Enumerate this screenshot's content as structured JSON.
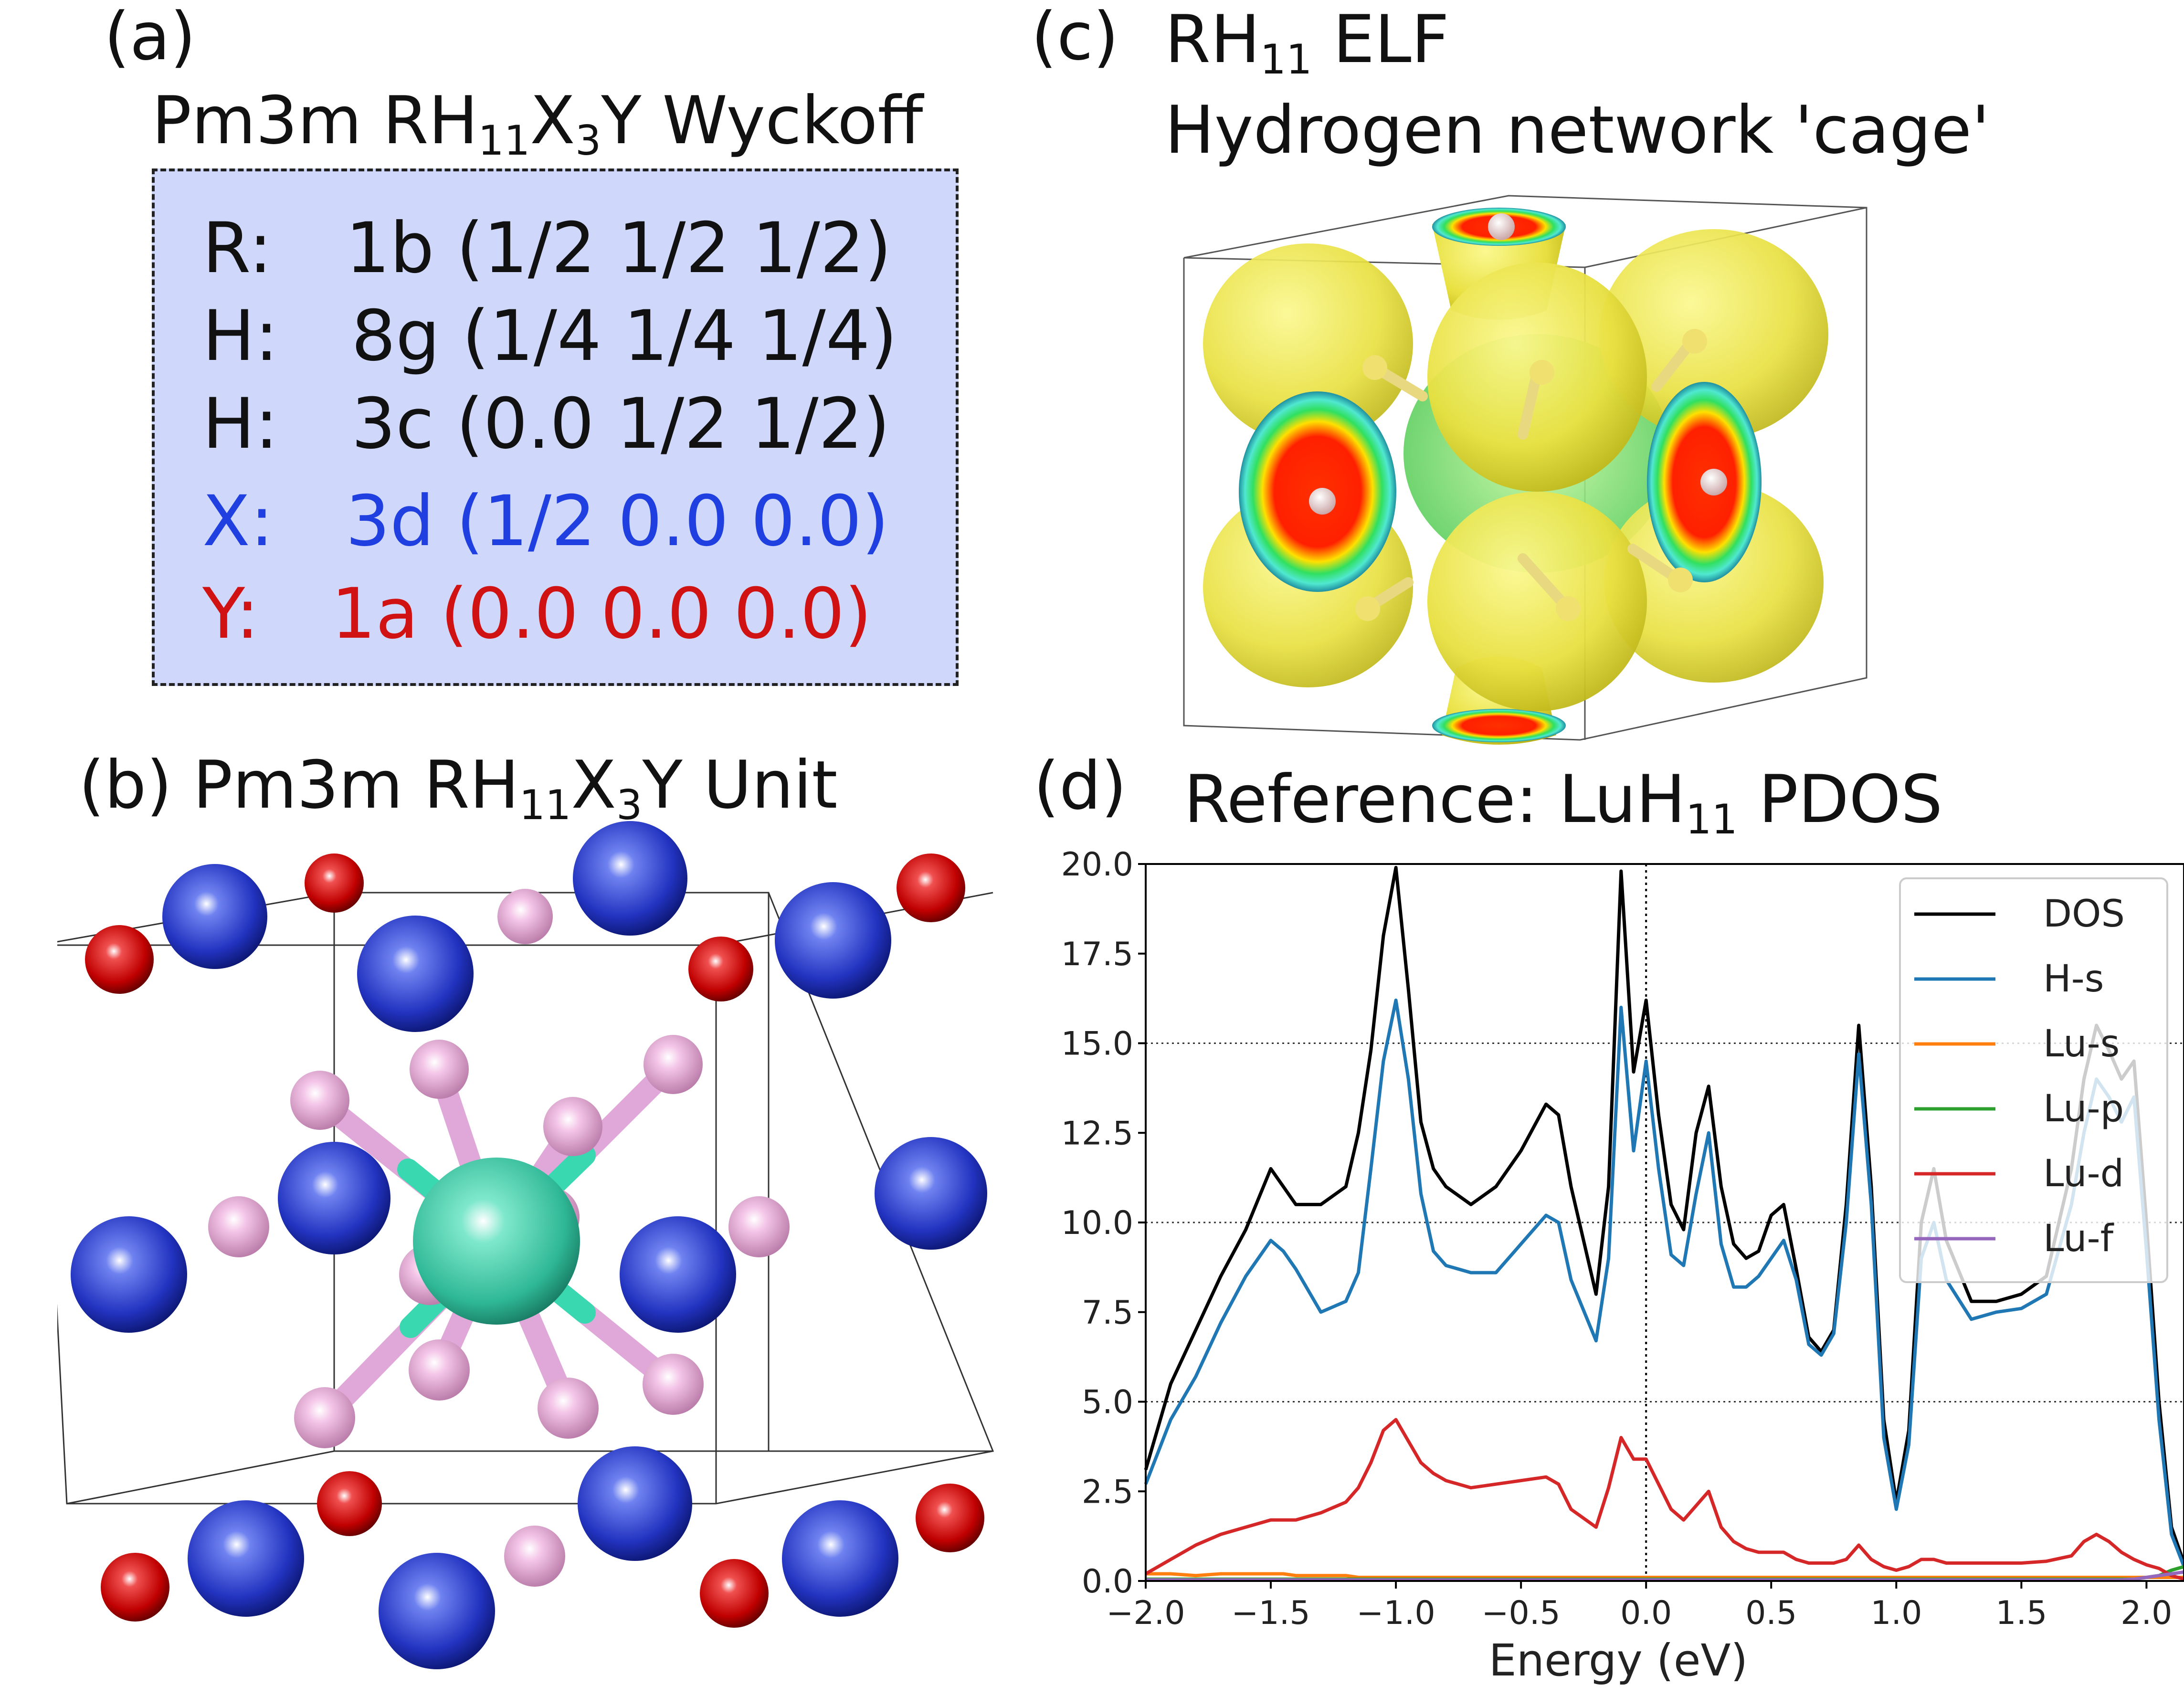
{
  "panel_a": {
    "label": "(a)",
    "title_pre": "Pm3m RH",
    "title_sub1": "11",
    "title_mid": "X",
    "title_sub2": "3",
    "title_post": "Y Wyckoff",
    "rows": [
      {
        "atom": "R:",
        "site": "1b (1/2 1/2 1/2)",
        "color": "#111111"
      },
      {
        "atom": "H:",
        "site": "8g (1/4 1/4 1/4)",
        "color": "#111111"
      },
      {
        "atom": "H:",
        "site": "3c (0.0 1/2 1/2)",
        "color": "#111111"
      },
      {
        "atom": "X:",
        "site": "3d (1/2 0.0 0.0)",
        "color": "#1f3fe0"
      },
      {
        "atom": "Y:",
        "site": "1a (0.0 0.0 0.0)",
        "color": "#d01212"
      }
    ],
    "box_color": "#cfd8fb"
  },
  "panel_b": {
    "label": "(b)",
    "title_pre": "Pm3m RH",
    "title_sub1": "11",
    "title_mid": "X",
    "title_sub2": "3",
    "title_post": "Y Unit",
    "colors": {
      "R": "#3fd1b0",
      "H": "#e8a8d8",
      "X": "#2a3fd0",
      "Y": "#d81010"
    }
  },
  "panel_c": {
    "label": "(c)",
    "title_pre": "RH",
    "title_sub": "11",
    "title_post": "ELF",
    "subtitle": "Hydrogen network 'cage'"
  },
  "panel_d": {
    "label": "(d)",
    "title_pre": "Reference: LuH",
    "title_sub": "11",
    "title_post": "PDOS"
  },
  "chart_data": {
    "type": "line",
    "xlabel": "Energy (eV)",
    "ylabel": "",
    "xlim": [
      -2.0,
      2.15
    ],
    "ylim": [
      0.0,
      20.0
    ],
    "xticks": [
      "-2.0",
      "-1.5",
      "-1.0",
      "-0.5",
      "0.0",
      "0.5",
      "1.0",
      "1.5",
      "2.0"
    ],
    "yticks": [
      "0.0",
      "2.5",
      "5.0",
      "7.5",
      "10.0",
      "12.5",
      "15.0",
      "17.5",
      "20.0"
    ],
    "grid": "horizontal dotted at 5.0, 10.0, 15.0; vertical dotted at 0.0",
    "legend_position": "top-right",
    "x": [
      -2.0,
      -1.9,
      -1.8,
      -1.7,
      -1.6,
      -1.5,
      -1.45,
      -1.4,
      -1.3,
      -1.2,
      -1.15,
      -1.1,
      -1.05,
      -1.0,
      -0.95,
      -0.9,
      -0.85,
      -0.8,
      -0.7,
      -0.6,
      -0.5,
      -0.4,
      -0.35,
      -0.3,
      -0.2,
      -0.15,
      -0.1,
      -0.05,
      0.0,
      0.05,
      0.1,
      0.15,
      0.2,
      0.25,
      0.3,
      0.35,
      0.4,
      0.45,
      0.5,
      0.55,
      0.6,
      0.65,
      0.7,
      0.75,
      0.8,
      0.85,
      0.9,
      0.95,
      1.0,
      1.05,
      1.1,
      1.15,
      1.2,
      1.3,
      1.4,
      1.5,
      1.6,
      1.7,
      1.75,
      1.8,
      1.85,
      1.9,
      1.95,
      2.0,
      2.05,
      2.1,
      2.15
    ],
    "series": [
      {
        "name": "DOS",
        "color": "#000000",
        "values": [
          3.1,
          5.5,
          7.0,
          8.5,
          9.8,
          11.5,
          11.0,
          10.5,
          10.5,
          11.0,
          12.5,
          14.8,
          18.0,
          19.9,
          16.5,
          12.8,
          11.5,
          11.0,
          10.5,
          11.0,
          12.0,
          13.3,
          13.0,
          11.0,
          8.0,
          11.0,
          19.8,
          14.2,
          16.2,
          13.0,
          10.5,
          9.8,
          12.5,
          13.8,
          11.0,
          9.4,
          9.0,
          9.2,
          10.2,
          10.5,
          8.7,
          6.8,
          6.4,
          7.0,
          10.5,
          15.5,
          11.0,
          4.5,
          2.2,
          4.2,
          10.0,
          11.5,
          9.5,
          7.8,
          7.8,
          8.0,
          8.5,
          11.5,
          14.0,
          15.5,
          14.8,
          14.0,
          14.5,
          10.0,
          5.0,
          1.5,
          0.5
        ]
      },
      {
        "name": "H-s",
        "values": [
          2.7,
          4.5,
          5.7,
          7.2,
          8.5,
          9.5,
          9.2,
          8.7,
          7.5,
          7.8,
          8.6,
          11.5,
          14.5,
          16.2,
          14.0,
          10.8,
          9.2,
          8.8,
          8.6,
          8.6,
          9.4,
          10.2,
          10.0,
          8.4,
          6.7,
          9.0,
          16.0,
          12.0,
          14.5,
          11.5,
          9.1,
          8.8,
          10.8,
          12.5,
          9.4,
          8.2,
          8.2,
          8.5,
          9.0,
          9.5,
          8.4,
          6.6,
          6.3,
          6.9,
          10.0,
          14.7,
          10.5,
          4.0,
          2.0,
          3.8,
          9.0,
          10.0,
          8.4,
          7.3,
          7.5,
          7.6,
          8.0,
          10.5,
          12.5,
          14.0,
          13.5,
          12.8,
          13.5,
          9.2,
          4.5,
          1.3,
          0.4
        ]
      },
      {
        "name": "Lu-s",
        "values": [
          0.2,
          0.2,
          0.15,
          0.2,
          0.2,
          0.2,
          0.2,
          0.15,
          0.15,
          0.15,
          0.1,
          0.1,
          0.1,
          0.1,
          0.1,
          0.1,
          0.1,
          0.1,
          0.1,
          0.1,
          0.1,
          0.1,
          0.1,
          0.1,
          0.1,
          0.1,
          0.1,
          0.1,
          0.1,
          0.1,
          0.1,
          0.1,
          0.1,
          0.1,
          0.1,
          0.1,
          0.1,
          0.1,
          0.1,
          0.1,
          0.1,
          0.1,
          0.1,
          0.1,
          0.1,
          0.1,
          0.1,
          0.1,
          0.1,
          0.1,
          0.1,
          0.1,
          0.1,
          0.1,
          0.1,
          0.1,
          0.1,
          0.1,
          0.1,
          0.1,
          0.1,
          0.1,
          0.1,
          0.1,
          0.1,
          0.1,
          0.1
        ]
      },
      {
        "name": "Lu-p",
        "values": [
          0.05,
          0.05,
          0.05,
          0.05,
          0.05,
          0.05,
          0.05,
          0.05,
          0.05,
          0.05,
          0.05,
          0.05,
          0.05,
          0.05,
          0.05,
          0.05,
          0.05,
          0.05,
          0.05,
          0.05,
          0.05,
          0.05,
          0.05,
          0.05,
          0.05,
          0.05,
          0.05,
          0.05,
          0.05,
          0.05,
          0.05,
          0.05,
          0.05,
          0.05,
          0.05,
          0.05,
          0.05,
          0.05,
          0.05,
          0.05,
          0.05,
          0.05,
          0.05,
          0.05,
          0.05,
          0.05,
          0.05,
          0.05,
          0.05,
          0.05,
          0.05,
          0.05,
          0.05,
          0.05,
          0.05,
          0.05,
          0.05,
          0.05,
          0.05,
          0.05,
          0.05,
          0.05,
          0.05,
          0.1,
          0.15,
          0.3,
          0.4
        ]
      },
      {
        "name": "Lu-d",
        "values": [
          0.2,
          0.6,
          1.0,
          1.3,
          1.5,
          1.7,
          1.7,
          1.7,
          1.9,
          2.2,
          2.6,
          3.3,
          4.2,
          4.5,
          3.9,
          3.3,
          3.0,
          2.8,
          2.6,
          2.7,
          2.8,
          2.9,
          2.7,
          2.0,
          1.5,
          2.6,
          4.0,
          3.4,
          3.4,
          2.7,
          2.0,
          1.7,
          2.1,
          2.5,
          1.5,
          1.1,
          0.9,
          0.8,
          0.8,
          0.8,
          0.6,
          0.5,
          0.5,
          0.5,
          0.6,
          1.0,
          0.6,
          0.4,
          0.3,
          0.4,
          0.6,
          0.6,
          0.5,
          0.5,
          0.5,
          0.5,
          0.55,
          0.7,
          1.1,
          1.3,
          1.1,
          0.8,
          0.6,
          0.45,
          0.35,
          0.15,
          0.05
        ]
      },
      {
        "name": "Lu-f",
        "values": [
          0.03,
          0.03,
          0.03,
          0.03,
          0.03,
          0.03,
          0.03,
          0.03,
          0.03,
          0.03,
          0.03,
          0.03,
          0.03,
          0.03,
          0.03,
          0.03,
          0.03,
          0.03,
          0.03,
          0.03,
          0.03,
          0.03,
          0.03,
          0.03,
          0.03,
          0.03,
          0.03,
          0.03,
          0.03,
          0.03,
          0.03,
          0.03,
          0.03,
          0.03,
          0.03,
          0.03,
          0.03,
          0.03,
          0.03,
          0.03,
          0.03,
          0.03,
          0.03,
          0.03,
          0.03,
          0.03,
          0.03,
          0.03,
          0.03,
          0.03,
          0.03,
          0.03,
          0.03,
          0.03,
          0.03,
          0.03,
          0.03,
          0.03,
          0.03,
          0.03,
          0.03,
          0.03,
          0.05,
          0.1,
          0.15,
          0.2,
          0.25
        ]
      }
    ],
    "series_colors": [
      "#000000",
      "#1f77b4",
      "#ff7f0e",
      "#2ca02c",
      "#d62728",
      "#9467bd"
    ]
  }
}
